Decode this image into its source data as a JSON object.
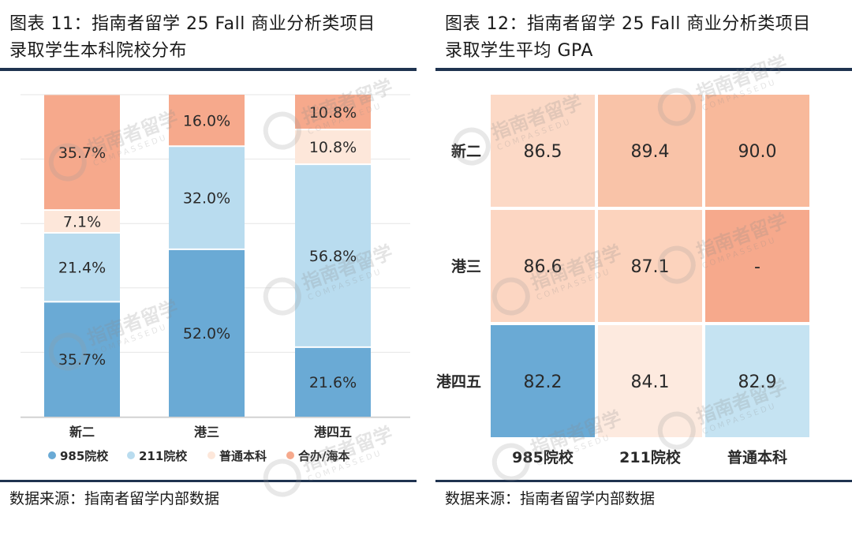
{
  "left": {
    "title_line1": "图表 11：指南者留学 25 Fall 商业分析类项目",
    "title_line2": "录取学生本科院校分布",
    "source": "数据来源：指南者留学内部数据"
  },
  "right": {
    "title_line1": "图表 12：指南者留学 25 Fall 商业分析类项目",
    "title_line2": "录取学生平均 GPA",
    "source": "数据来源：指南者留学内部数据"
  },
  "watermark": {
    "text": "指南者留学",
    "subtext": "COMPASSEDU"
  },
  "colors": {
    "c985": "#6aaad5",
    "c211": "#b9dcef",
    "general": "#fde7da",
    "joint": "#f6a98c",
    "rule": "#1f3350"
  },
  "chart_data": [
    {
      "type": "bar",
      "stacked": true,
      "categories": [
        "新二",
        "港三",
        "港四五"
      ],
      "series": [
        {
          "name": "985院校",
          "color_key": "c985",
          "values": [
            35.7,
            52.0,
            21.6
          ],
          "labels": [
            "35.7%",
            "52.0%",
            "21.6%"
          ]
        },
        {
          "name": "211院校",
          "color_key": "c211",
          "values": [
            21.4,
            32.0,
            56.8
          ],
          "labels": [
            "21.4%",
            "32.0%",
            "56.8%"
          ]
        },
        {
          "name": "普通本科",
          "color_key": "general",
          "values": [
            7.1,
            0,
            10.8
          ],
          "labels": [
            "7.1%",
            "",
            "10.8%"
          ]
        },
        {
          "name": "合办/海本",
          "color_key": "joint",
          "values": [
            35.7,
            16.0,
            10.8
          ],
          "labels": [
            "35.7%",
            "16.0%",
            "10.8%"
          ]
        }
      ],
      "ylim": [
        0,
        100
      ],
      "grid": true,
      "legend": "bottom"
    },
    {
      "type": "heatmap",
      "rows": [
        "新二",
        "港三",
        "港四五"
      ],
      "columns": [
        "985院校",
        "211院校",
        "普通本科"
      ],
      "values": [
        [
          86.5,
          89.4,
          90.0
        ],
        [
          86.6,
          87.1,
          null
        ],
        [
          82.2,
          84.1,
          82.9
        ]
      ],
      "labels": [
        [
          "86.5",
          "89.4",
          "90.0"
        ],
        [
          "86.6",
          "87.1",
          "-"
        ],
        [
          "82.2",
          "84.1",
          "82.9"
        ]
      ],
      "cell_colors": [
        [
          "#fcd9c6",
          "#f9c3a8",
          "#f8b99b"
        ],
        [
          "#fcd6c2",
          "#fcd3bd",
          "#f6a98c"
        ],
        [
          "#6aaad5",
          "#fdeadf",
          "#c5e3f2"
        ]
      ]
    }
  ]
}
